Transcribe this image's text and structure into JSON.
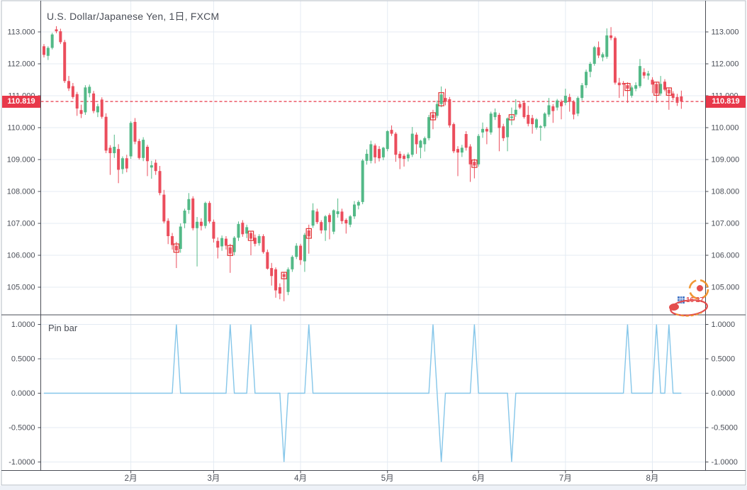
{
  "header": {
    "title": "U.S. Dollar/Japanese Yen, 1日, FXCM"
  },
  "price_axis": {
    "last_price": "110.819",
    "labels": [
      "113.000",
      "112.000",
      "111.000",
      "110.000",
      "109.000",
      "108.000",
      "107.000",
      "106.000",
      "105.000"
    ]
  },
  "pin_panel": {
    "title": "Pin bar",
    "labels": [
      "1.0000",
      "0.5000",
      "0.0000",
      "-0.5000",
      "-1.0000"
    ]
  },
  "time_axis": {
    "labels": [
      "2月",
      "3月",
      "4月",
      "5月",
      "6月",
      "7月",
      "8月"
    ]
  },
  "watermark": {
    "text": "16 27"
  },
  "colors": {
    "up": "#53b987",
    "down": "#eb4d5c",
    "pin_line": "#85c6e9",
    "last_price": "#e8384a",
    "grid": "#e4ebf3",
    "axis_line": "#4a4d55",
    "text": "#4a4e57",
    "pin_box": "#e03131",
    "watermark_orange": "#f08c1e",
    "watermark_red": "#e23b3b",
    "watermark_blue": "#3a6fc4"
  },
  "chart_data": {
    "type": "candlestick",
    "title": "U.S. Dollar/Japanese Yen, 1日, FXCM",
    "last_price": 110.819,
    "price_gridlines": [
      113,
      112,
      111,
      110,
      109,
      108,
      107,
      106,
      105
    ],
    "pin_gridlines": [
      1,
      0.5,
      0,
      -0.5,
      -1
    ],
    "month_labels": [
      "2月",
      "3月",
      "4月",
      "5月",
      "6月",
      "7月",
      "8月"
    ],
    "month_start_bars": [
      21,
      41,
      62,
      83,
      105,
      126,
      147
    ],
    "ylim_main": [
      104.2,
      114.0
    ],
    "ylim_pin": [
      -1.1,
      1.1
    ],
    "legend_position": "top-left",
    "grid": true,
    "candles": [
      [
        112.55,
        112.62,
        112.2,
        112.28
      ],
      [
        112.25,
        112.55,
        112.12,
        112.5
      ],
      [
        112.5,
        112.97,
        112.45,
        112.92
      ],
      [
        113.08,
        113.18,
        112.96,
        113.02
      ],
      [
        113.02,
        113.1,
        112.62,
        112.68
      ],
      [
        112.68,
        112.75,
        111.4,
        111.46
      ],
      [
        111.46,
        111.62,
        111.15,
        111.23
      ],
      [
        111.3,
        111.4,
        110.9,
        110.96
      ],
      [
        111.05,
        111.12,
        110.37,
        110.6
      ],
      [
        110.55,
        110.72,
        110.3,
        110.43
      ],
      [
        110.48,
        111.33,
        110.4,
        111.26
      ],
      [
        111.08,
        111.35,
        110.95,
        111.28
      ],
      [
        111.07,
        111.15,
        110.45,
        110.52
      ],
      [
        110.48,
        110.75,
        110.33,
        110.67
      ],
      [
        110.88,
        110.95,
        110.28,
        110.34
      ],
      [
        110.34,
        110.45,
        109.2,
        109.28
      ],
      [
        109.37,
        109.45,
        108.52,
        109.2
      ],
      [
        109.2,
        109.78,
        109.05,
        109.4
      ],
      [
        109.33,
        109.48,
        108.26,
        108.68
      ],
      [
        108.7,
        109.1,
        108.55,
        109.04
      ],
      [
        109.04,
        109.15,
        108.6,
        108.72
      ],
      [
        109.1,
        110.2,
        109.02,
        110.15
      ],
      [
        110.18,
        110.3,
        109.48,
        109.56
      ],
      [
        109.58,
        109.65,
        109.0,
        109.05
      ],
      [
        109.05,
        109.7,
        108.95,
        109.62
      ],
      [
        109.4,
        109.46,
        108.48,
        108.95
      ],
      [
        108.75,
        108.96,
        108.4,
        108.82
      ],
      [
        108.9,
        109.0,
        108.52,
        108.64
      ],
      [
        108.64,
        108.8,
        107.88,
        107.95
      ],
      [
        107.9,
        108.05,
        107.0,
        107.06
      ],
      [
        107.08,
        107.16,
        106.35,
        106.6
      ],
      [
        106.6,
        106.7,
        106.18,
        106.32
      ],
      [
        106.3,
        106.42,
        105.6,
        106.15
      ],
      [
        106.2,
        107.0,
        106.08,
        106.9
      ],
      [
        107.0,
        107.46,
        106.85,
        107.4
      ],
      [
        107.42,
        107.95,
        107.3,
        107.76
      ],
      [
        107.78,
        107.85,
        106.78,
        106.85
      ],
      [
        106.85,
        107.2,
        105.65,
        107.05
      ],
      [
        107.05,
        107.16,
        106.78,
        106.92
      ],
      [
        106.92,
        107.68,
        106.84,
        107.64
      ],
      [
        107.64,
        107.7,
        107.0,
        107.06
      ],
      [
        107.05,
        107.12,
        106.4,
        106.52
      ],
      [
        106.45,
        106.56,
        105.9,
        106.24
      ],
      [
        106.28,
        106.62,
        106.14,
        106.54
      ],
      [
        106.52,
        106.6,
        106.18,
        106.3
      ],
      [
        106.25,
        106.36,
        105.45,
        106.05
      ],
      [
        106.1,
        106.6,
        106.0,
        106.55
      ],
      [
        106.55,
        107.06,
        106.45,
        106.98
      ],
      [
        107.02,
        107.1,
        106.58,
        106.66
      ],
      [
        106.68,
        106.96,
        106.54,
        106.88
      ],
      [
        106.7,
        106.76,
        106.0,
        106.52
      ],
      [
        106.55,
        106.65,
        106.28,
        106.36
      ],
      [
        106.38,
        106.66,
        106.3,
        106.6
      ],
      [
        106.6,
        106.66,
        106.05,
        106.1
      ],
      [
        106.1,
        106.18,
        105.55,
        105.58
      ],
      [
        105.6,
        105.76,
        105.05,
        105.35
      ],
      [
        105.56,
        105.62,
        104.67,
        104.9
      ],
      [
        105.0,
        105.12,
        104.62,
        104.8
      ],
      [
        105.41,
        105.48,
        104.56,
        105.32
      ],
      [
        104.85,
        105.62,
        104.75,
        105.56
      ],
      [
        105.56,
        106.0,
        105.48,
        105.95
      ],
      [
        105.95,
        106.38,
        105.88,
        106.3
      ],
      [
        106.3,
        106.36,
        105.7,
        105.85
      ],
      [
        105.81,
        106.7,
        105.48,
        106.64
      ],
      [
        106.78,
        106.96,
        106.05,
        106.59
      ],
      [
        106.93,
        107.63,
        106.86,
        107.41
      ],
      [
        107.37,
        107.46,
        106.98,
        107.04
      ],
      [
        107.04,
        107.1,
        106.68,
        106.78
      ],
      [
        106.78,
        107.26,
        106.45,
        107.22
      ],
      [
        107.26,
        107.32,
        106.5,
        107.04
      ],
      [
        106.74,
        107.44,
        106.66,
        107.41
      ],
      [
        107.29,
        107.78,
        107.18,
        107.38
      ],
      [
        107.37,
        107.46,
        106.98,
        107.07
      ],
      [
        107.11,
        107.16,
        106.68,
        107.0
      ],
      [
        106.96,
        107.26,
        106.88,
        107.22
      ],
      [
        107.22,
        107.7,
        107.14,
        107.59
      ],
      [
        107.56,
        107.72,
        107.44,
        107.67
      ],
      [
        107.67,
        109.02,
        107.6,
        108.97
      ],
      [
        108.96,
        109.32,
        108.84,
        109.18
      ],
      [
        108.96,
        109.59,
        108.88,
        109.48
      ],
      [
        109.44,
        109.5,
        108.88,
        109.07
      ],
      [
        109.33,
        109.42,
        108.94,
        109.04
      ],
      [
        109.07,
        109.4,
        108.98,
        109.37
      ],
      [
        109.33,
        109.92,
        109.26,
        109.89
      ],
      [
        109.93,
        110.07,
        109.74,
        109.81
      ],
      [
        109.81,
        109.86,
        108.93,
        109.15
      ],
      [
        109.18,
        109.26,
        108.7,
        109.04
      ],
      [
        109.12,
        109.18,
        108.78,
        109.02
      ],
      [
        109.04,
        109.22,
        108.94,
        109.16
      ],
      [
        109.15,
        110.02,
        109.08,
        109.81
      ],
      [
        109.78,
        109.85,
        109.18,
        109.48
      ],
      [
        109.37,
        109.62,
        109.04,
        109.59
      ],
      [
        109.48,
        109.72,
        109.25,
        109.67
      ],
      [
        109.67,
        110.4,
        109.6,
        110.33
      ],
      [
        110.41,
        110.56,
        109.95,
        110.3
      ],
      [
        110.37,
        110.85,
        110.3,
        110.74
      ],
      [
        110.74,
        111.29,
        110.64,
        111.04
      ],
      [
        110.93,
        111.22,
        110.7,
        110.81
      ],
      [
        110.89,
        110.96,
        110.0,
        110.07
      ],
      [
        110.11,
        110.16,
        109.2,
        109.26
      ],
      [
        109.33,
        109.42,
        108.48,
        109.22
      ],
      [
        109.22,
        109.46,
        109.08,
        109.37
      ],
      [
        109.8,
        109.89,
        109.28,
        109.37
      ],
      [
        109.41,
        109.48,
        108.3,
        108.85
      ],
      [
        108.93,
        109.02,
        108.41,
        108.81
      ],
      [
        108.85,
        109.8,
        108.78,
        109.74
      ],
      [
        109.85,
        110.16,
        109.68,
        109.96
      ],
      [
        109.96,
        110.02,
        109.48,
        109.88
      ],
      [
        109.85,
        110.5,
        109.78,
        110.44
      ],
      [
        110.33,
        110.6,
        110.24,
        110.48
      ],
      [
        110.4,
        110.46,
        109.26,
        109.99
      ],
      [
        110.04,
        110.12,
        109.58,
        109.67
      ],
      [
        109.7,
        110.32,
        109.26,
        110.29
      ],
      [
        110.3,
        110.63,
        110.08,
        110.35
      ],
      [
        110.41,
        110.89,
        110.34,
        110.56
      ],
      [
        110.74,
        110.82,
        110.58,
        110.63
      ],
      [
        110.78,
        110.85,
        110.28,
        110.33
      ],
      [
        110.4,
        110.68,
        110.04,
        110.12
      ],
      [
        110.3,
        110.4,
        109.81,
        110.11
      ],
      [
        110.0,
        110.3,
        109.94,
        110.26
      ],
      [
        110.0,
        110.08,
        109.59,
        110.04
      ],
      [
        110.04,
        110.48,
        109.98,
        110.44
      ],
      [
        110.41,
        110.93,
        110.34,
        110.7
      ],
      [
        110.67,
        110.74,
        110.15,
        110.52
      ],
      [
        110.63,
        110.9,
        110.54,
        110.85
      ],
      [
        110.81,
        110.88,
        110.26,
        110.67
      ],
      [
        110.78,
        111.22,
        110.7,
        111.0
      ],
      [
        110.96,
        111.06,
        110.5,
        110.81
      ],
      [
        110.81,
        110.86,
        110.26,
        110.41
      ],
      [
        110.44,
        110.98,
        110.36,
        110.93
      ],
      [
        110.93,
        111.4,
        110.85,
        111.33
      ],
      [
        111.33,
        111.82,
        111.24,
        111.75
      ],
      [
        111.75,
        112.06,
        111.58,
        112.0
      ],
      [
        112.0,
        112.56,
        111.94,
        112.52
      ],
      [
        112.52,
        112.7,
        112.18,
        112.26
      ],
      [
        112.2,
        112.36,
        112.08,
        112.3
      ],
      [
        112.22,
        113.11,
        112.16,
        112.89
      ],
      [
        112.89,
        113.15,
        112.74,
        112.81
      ],
      [
        112.81,
        112.86,
        111.35,
        111.41
      ],
      [
        111.41,
        111.56,
        110.93,
        111.33
      ],
      [
        111.4,
        111.46,
        110.98,
        111.35
      ],
      [
        111.33,
        111.42,
        110.78,
        111.22
      ],
      [
        111.0,
        111.32,
        110.94,
        111.26
      ],
      [
        111.22,
        111.42,
        111.14,
        111.33
      ],
      [
        111.3,
        112.15,
        111.24,
        111.93
      ],
      [
        111.74,
        111.86,
        111.54,
        111.63
      ],
      [
        111.63,
        111.78,
        111.5,
        111.7
      ],
      [
        111.5,
        111.58,
        111.08,
        111.35
      ],
      [
        111.37,
        111.44,
        110.78,
        111.07
      ],
      [
        111.07,
        111.62,
        111.0,
        111.37
      ],
      [
        111.44,
        111.52,
        111.14,
        111.19
      ],
      [
        111.19,
        111.26,
        110.56,
        111.07
      ],
      [
        111.07,
        111.14,
        110.86,
        110.93
      ],
      [
        110.96,
        111.06,
        110.68,
        110.78
      ],
      [
        110.98,
        111.16,
        110.59,
        110.82
      ]
    ],
    "pin_bar": {
      "name": "Pin bar",
      "marks": [
        {
          "bar": 32,
          "value": 1
        },
        {
          "bar": 45,
          "value": 1
        },
        {
          "bar": 50,
          "value": 1
        },
        {
          "bar": 58,
          "value": -1
        },
        {
          "bar": 64,
          "value": 1
        },
        {
          "bar": 94,
          "value": 1
        },
        {
          "bar": 96,
          "value": -1
        },
        {
          "bar": 104,
          "value": 1
        },
        {
          "bar": 113,
          "value": -1
        },
        {
          "bar": 141,
          "value": 1
        },
        {
          "bar": 148,
          "value": 1
        },
        {
          "bar": 151,
          "value": 1
        }
      ]
    }
  }
}
